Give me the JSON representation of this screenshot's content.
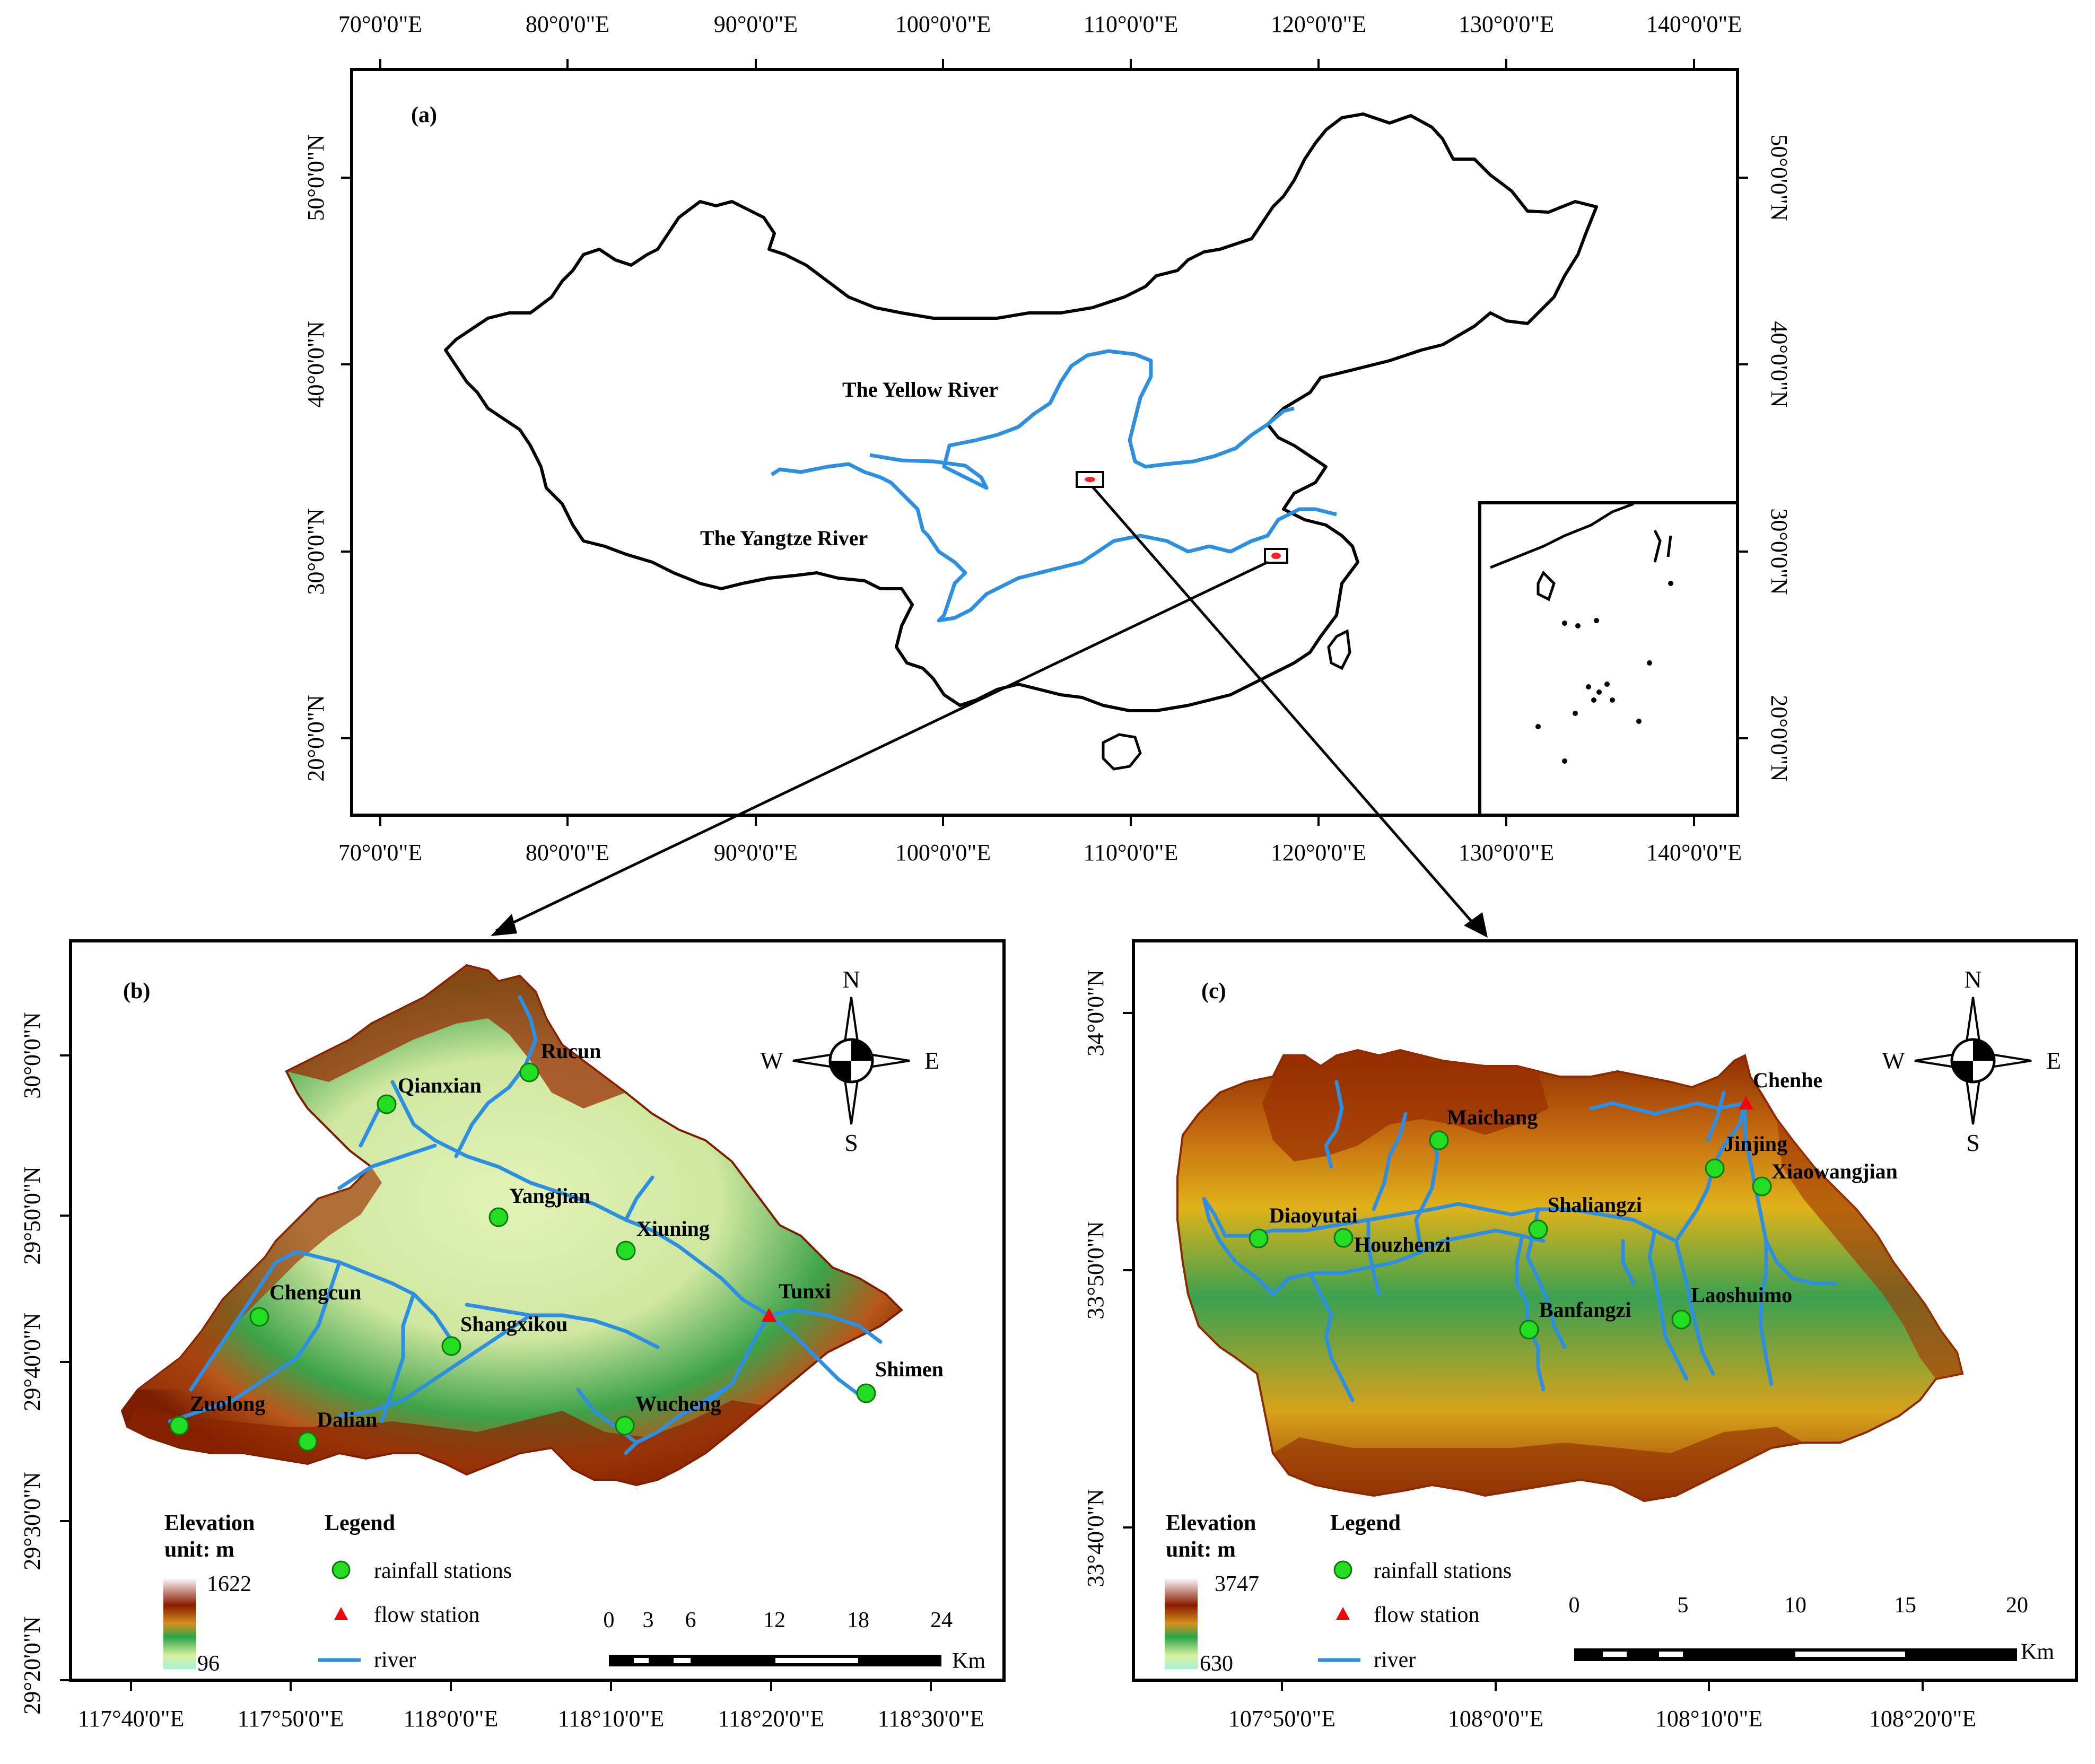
{
  "panel_a": {
    "label": "(a)",
    "lon_ticks": [
      "70°0'0\"E",
      "80°0'0\"E",
      "90°0'0\"E",
      "100°0'0\"E",
      "110°0'0\"E",
      "120°0'0\"E",
      "130°0'0\"E",
      "140°0'0\"E"
    ],
    "lat_ticks": [
      "50°0'0\"N",
      "40°0'0\"N",
      "30°0'0\"N",
      "20°0'0\"N"
    ],
    "rivers": [
      "The Yellow River",
      "The Yangtze River"
    ]
  },
  "panel_b": {
    "label": "(b)",
    "lon_ticks": [
      "117°40'0\"E",
      "117°50'0\"E",
      "118°0'0\"E",
      "118°10'0\"E",
      "118°20'0\"E",
      "118°30'0\"E"
    ],
    "lat_ticks": [
      "30°0'0\"N",
      "29°50'0\"N",
      "29°40'0\"N",
      "29°30'0\"N",
      "29°20'0\"N"
    ],
    "rain_stations": [
      "Qianxian",
      "Rucun",
      "Yangjian",
      "Xiuning",
      "Chengcun",
      "Shangxikou",
      "Zuolong",
      "Dalian",
      "Wucheng",
      "Shimen"
    ],
    "flow_station": "Tunxi",
    "elev_title": "Elevation",
    "elev_unit": "unit: m",
    "elev_max": "1622",
    "elev_min": "96",
    "scale_ticks": [
      "0",
      "3",
      "6",
      "12",
      "18",
      "24"
    ],
    "scale_unit": "Km"
  },
  "panel_c": {
    "label": "(c)",
    "lon_ticks": [
      "107°50'0\"E",
      "108°0'0\"E",
      "108°10'0\"E",
      "108°20'0\"E"
    ],
    "lat_ticks": [
      "34°0'0\"N",
      "33°50'0\"N",
      "33°40'0\"N"
    ],
    "rain_stations": [
      "Maichang",
      "Jinjing",
      "Xiaowangjian",
      "Diaoyutai",
      "Houzhenzi",
      "Shaliangzi",
      "Banfangzi",
      "Laoshuimo"
    ],
    "flow_station": "Chenhe",
    "elev_title": "Elevation",
    "elev_unit": "unit: m",
    "elev_max": "3747",
    "elev_min": "630",
    "scale_ticks": [
      "0",
      "5",
      "10",
      "15",
      "20"
    ],
    "scale_unit": "Km"
  },
  "legend": {
    "title": "Legend",
    "rain": "rainfall stations",
    "flow": "flow station",
    "river": "river"
  },
  "compass": {
    "n": "N",
    "s": "S",
    "e": "E",
    "w": "W"
  },
  "colors": {
    "river": "#2e8fe0",
    "rain_station": "#22dd22",
    "flow_station": "#ff0000",
    "elev_low": "#a8f0d8",
    "elev_mid": "#2aa64a",
    "elev_high": "#8b1a00",
    "elev_top": "#ffffff"
  }
}
